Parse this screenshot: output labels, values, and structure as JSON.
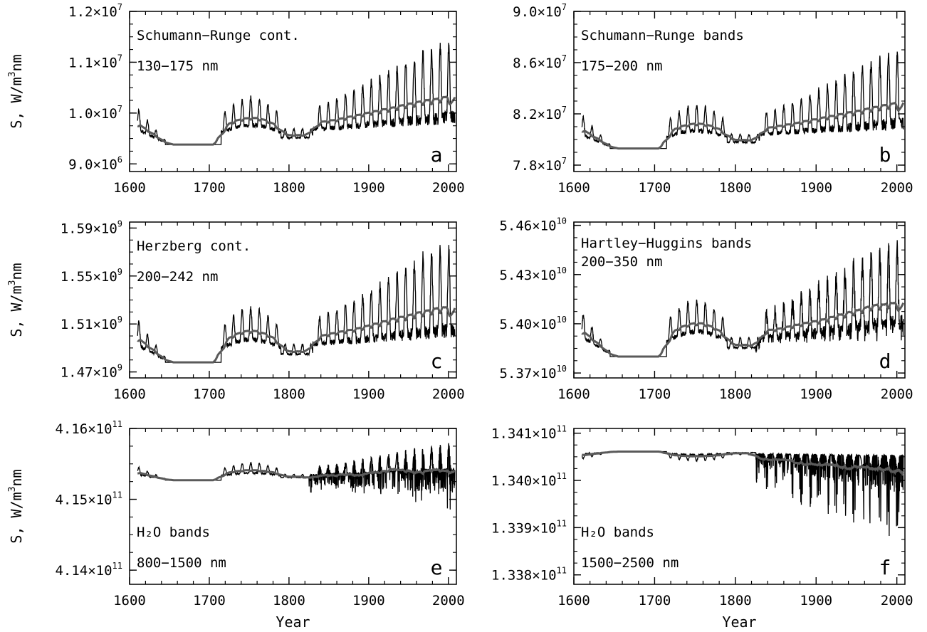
{
  "figure": {
    "xlabel": "Year",
    "ylabel_prefix": "S, W/m",
    "ylabel_sup": "3",
    "ylabel_suffix": "nm"
  },
  "colors": {
    "raw_series": "#000000",
    "smoothed_series": "#5a5a5a",
    "axes": "#000000",
    "background": "#ffffff"
  },
  "chart_data": [
    {
      "type": "line",
      "panel": "a",
      "text_lines": [
        "Schumann−Runge cont.",
        "130−175 nm"
      ],
      "xlim": [
        1600,
        2010
      ],
      "xticks": [
        1600,
        1700,
        1800,
        1900,
        2000
      ],
      "ylim": [
        8850000.0,
        12000000.0
      ],
      "yticks": [
        {
          "value": 9000000.0,
          "mant": "9.0×10",
          "exp": "6"
        },
        {
          "value": 10000000.0,
          "mant": "1.0×10",
          "exp": "7"
        },
        {
          "value": 11000000.0,
          "mant": "1.1×10",
          "exp": "7"
        },
        {
          "value": 12000000.0,
          "mant": "1.2×10",
          "exp": "7"
        }
      ],
      "base": 9380000.0,
      "amp_early": 450000.0,
      "amp_modern": 1050000.0,
      "trend_modern": 600000.0,
      "dip": 0,
      "show_ylabel": true,
      "show_xlabel": false,
      "grid": false
    },
    {
      "type": "line",
      "panel": "b",
      "text_lines": [
        "Schumann−Runge bands",
        "175−200 nm"
      ],
      "xlim": [
        1600,
        2010
      ],
      "xticks": [
        1600,
        1700,
        1800,
        1900,
        2000
      ],
      "ylim": [
        77500000.0,
        90000000.0
      ],
      "yticks": [
        {
          "value": 78000000.0,
          "mant": "7.8×10",
          "exp": "7"
        },
        {
          "value": 82000000.0,
          "mant": "8.2×10",
          "exp": "7"
        },
        {
          "value": 86000000.0,
          "mant": "8.6×10",
          "exp": "7"
        },
        {
          "value": 90000000.0,
          "mant": "9.0×10",
          "exp": "7"
        }
      ],
      "base": 79300000.0,
      "amp_early": 1600000.0,
      "amp_modern": 3900000.0,
      "trend_modern": 2200000.0,
      "dip": 0,
      "show_ylabel": false,
      "show_xlabel": false,
      "grid": false
    },
    {
      "type": "line",
      "panel": "c",
      "text_lines": [
        "Herzberg cont.",
        "200−242 nm"
      ],
      "xlim": [
        1600,
        2010
      ],
      "xticks": [
        1600,
        1700,
        1800,
        1900,
        2000
      ],
      "ylim": [
        1465000000.0,
        1595000000.0
      ],
      "yticks": [
        {
          "value": 1470000000.0,
          "mant": "1.47×10",
          "exp": "9"
        },
        {
          "value": 1510000000.0,
          "mant": "1.51×10",
          "exp": "9"
        },
        {
          "value": 1550000000.0,
          "mant": "1.55×10",
          "exp": "9"
        },
        {
          "value": 1590000000.0,
          "mant": "1.59×10",
          "exp": "9"
        }
      ],
      "base": 1478000000.0,
      "amp_early": 22000000.0,
      "amp_modern": 50000000.0,
      "trend_modern": 30000000.0,
      "dip": 0,
      "show_ylabel": true,
      "show_xlabel": false,
      "grid": false
    },
    {
      "type": "line",
      "panel": "d",
      "text_lines": [
        "Hartley−Huggins bands",
        "200−350 nm"
      ],
      "xlim": [
        1600,
        2010
      ],
      "xticks": [
        1600,
        1700,
        1800,
        1900,
        2000
      ],
      "ylim": [
        53670000000.0,
        54620000000.0
      ],
      "yticks": [
        {
          "value": 53700000000.0,
          "mant": "5.37×10",
          "exp": "10"
        },
        {
          "value": 54000000000.0,
          "mant": "5.40×10",
          "exp": "10"
        },
        {
          "value": 54300000000.0,
          "mant": "5.43×10",
          "exp": "10"
        },
        {
          "value": 54600000000.0,
          "mant": "5.46×10",
          "exp": "10"
        }
      ],
      "base": 53800000000.0,
      "amp_early": 160000000.0,
      "amp_modern": 360000000.0,
      "trend_modern": 240000000.0,
      "dip": 160000000.0,
      "show_ylabel": false,
      "show_xlabel": false,
      "grid": false
    },
    {
      "type": "line",
      "panel": "e",
      "text_lines": [
        "H₂O bands",
        "800−1500 nm"
      ],
      "xlim": [
        1600,
        2010
      ],
      "xticks": [
        1600,
        1700,
        1800,
        1900,
        2000
      ],
      "ylim": [
        413800000000.0,
        416000000000.0
      ],
      "yticks": [
        {
          "value": 414000000000.0,
          "mant": "4.14×10",
          "exp": "11"
        },
        {
          "value": 415000000000.0,
          "mant": "4.15×10",
          "exp": "11"
        },
        {
          "value": 416000000000.0,
          "mant": "4.16×10",
          "exp": "11"
        }
      ],
      "base": 415270000000.0,
      "amp_early": 120000000.0,
      "amp_modern": 260000000.0,
      "trend_modern": 160000000.0,
      "dip": 700000000.0,
      "show_ylabel": true,
      "show_xlabel": true,
      "grid": false
    },
    {
      "type": "line",
      "panel": "f",
      "text_lines": [
        "H₂O bands",
        "1500−2500 nm"
      ],
      "xlim": [
        1600,
        2010
      ],
      "xticks": [
        1600,
        1700,
        1800,
        1900,
        2000
      ],
      "ylim": [
        133780000000.0,
        134110000000.0
      ],
      "yticks": [
        {
          "value": 133800000000.0,
          "mant": "1.338×10",
          "exp": "11"
        },
        {
          "value": 133900000000.0,
          "mant": "1.339×10",
          "exp": "11"
        },
        {
          "value": 134000000000.0,
          "mant": "1.340×10",
          "exp": "11"
        },
        {
          "value": 134100000000.0,
          "mant": "1.341×10",
          "exp": "11"
        }
      ],
      "base": 134061000000.0,
      "amp_early": -12000000.0,
      "amp_modern": -20000000.0,
      "trend_modern": -10000000.0,
      "dip": 160000000.0,
      "show_ylabel": false,
      "show_xlabel": true,
      "grid": false
    }
  ]
}
